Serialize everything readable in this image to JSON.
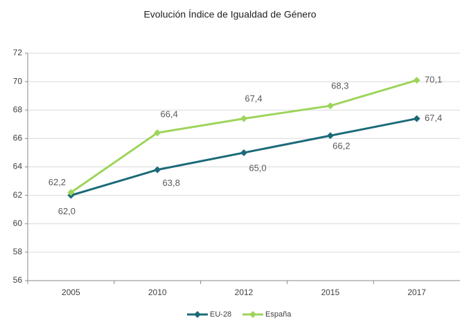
{
  "chart_data": {
    "type": "line",
    "title": "Evolución Índice de Igualdad de Género",
    "categories": [
      "2005",
      "2010",
      "2012",
      "2015",
      "2017"
    ],
    "series": [
      {
        "name": "EU-28",
        "color": "#1b6a78",
        "values": [
          62.0,
          63.8,
          65.0,
          66.2,
          67.4
        ],
        "value_labels": [
          "62,0",
          "63,8",
          "65,0",
          "66,2",
          "67,4"
        ]
      },
      {
        "name": "España",
        "color": "#9dd45a",
        "values": [
          62.2,
          66.4,
          67.4,
          68.3,
          70.1
        ],
        "value_labels": [
          "62,2",
          "66,4",
          "67,4",
          "68,3",
          "70,1"
        ]
      }
    ],
    "ylim": [
      56,
      72
    ],
    "yticks": [
      56,
      58,
      60,
      62,
      64,
      66,
      68,
      70,
      72
    ],
    "grid": true,
    "legend": "bottom"
  }
}
